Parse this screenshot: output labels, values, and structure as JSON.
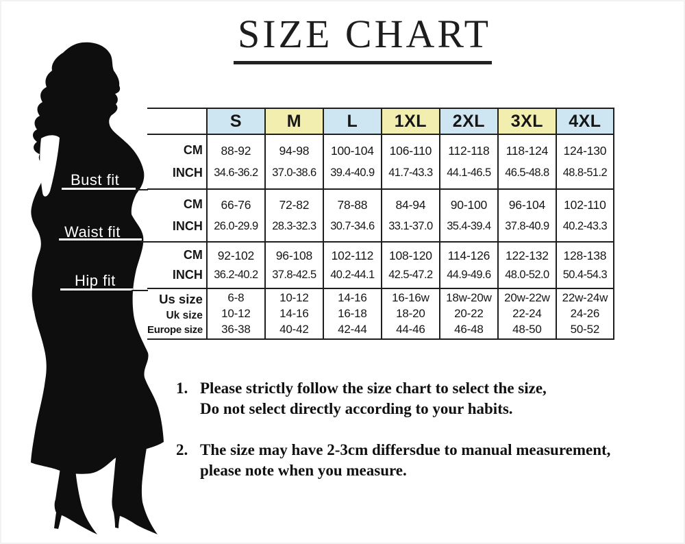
{
  "title": "SIZE CHART",
  "figure": {
    "silhouette": "plus-size woman in long dress and heels",
    "labels": [
      {
        "text": "Bust fit"
      },
      {
        "text": "Waist fit"
      },
      {
        "text": "Hip fit"
      }
    ]
  },
  "table": {
    "size_headers": [
      "S",
      "M",
      "L",
      "1XL",
      "2XL",
      "3XL",
      "4XL"
    ],
    "header_colors": [
      "#cee5f2",
      "#f1eeb0",
      "#cee5f2",
      "#f1eeb0",
      "#cee5f2",
      "#f1eeb0",
      "#cee5f2"
    ],
    "bands": [
      {
        "name": "bust",
        "rows": [
          {
            "label": "CM",
            "values": [
              "88-92",
              "94-98",
              "100-104",
              "106-110",
              "112-118",
              "118-124",
              "124-130"
            ]
          },
          {
            "label": "INCH",
            "values": [
              "34.6-36.2",
              "37.0-38.6",
              "39.4-40.9",
              "41.7-43.3",
              "44.1-46.5",
              "46.5-48.8",
              "48.8-51.2"
            ]
          }
        ]
      },
      {
        "name": "waist",
        "rows": [
          {
            "label": "CM",
            "values": [
              "66-76",
              "72-82",
              "78-88",
              "84-94",
              "90-100",
              "96-104",
              "102-110"
            ]
          },
          {
            "label": "INCH",
            "values": [
              "26.0-29.9",
              "28.3-32.3",
              "30.7-34.6",
              "33.1-37.0",
              "35.4-39.4",
              "37.8-40.9",
              "40.2-43.3"
            ]
          }
        ]
      },
      {
        "name": "hip",
        "rows": [
          {
            "label": "CM",
            "values": [
              "92-102",
              "96-108",
              "102-112",
              "108-120",
              "114-126",
              "122-132",
              "128-138"
            ]
          },
          {
            "label": "INCH",
            "values": [
              "36.2-40.2",
              "37.8-42.5",
              "40.2-44.1",
              "42.5-47.2",
              "44.9-49.6",
              "48.0-52.0",
              "50.4-54.3"
            ]
          }
        ]
      },
      {
        "name": "conversion",
        "rows": [
          {
            "label": "Us size",
            "values": [
              "6-8",
              "10-12",
              "14-16",
              "16-16w",
              "18w-20w",
              "20w-22w",
              "22w-24w"
            ]
          },
          {
            "label": "Uk size",
            "values": [
              "10-12",
              "14-16",
              "16-18",
              "18-20",
              "20-22",
              "22-24",
              "24-26"
            ]
          },
          {
            "label": "Europe size",
            "values": [
              "36-38",
              "40-42",
              "42-44",
              "44-46",
              "46-48",
              "48-50",
              "50-52"
            ]
          }
        ]
      }
    ]
  },
  "notes": [
    {
      "number": "1.",
      "lines": [
        "Please strictly follow the size chart to select the size,",
        "Do not select directly according to your habits."
      ]
    },
    {
      "number": "2.",
      "lines": [
        "The size may have 2-3cm differsdue to manual measurement,",
        "please note when you measure."
      ]
    }
  ]
}
